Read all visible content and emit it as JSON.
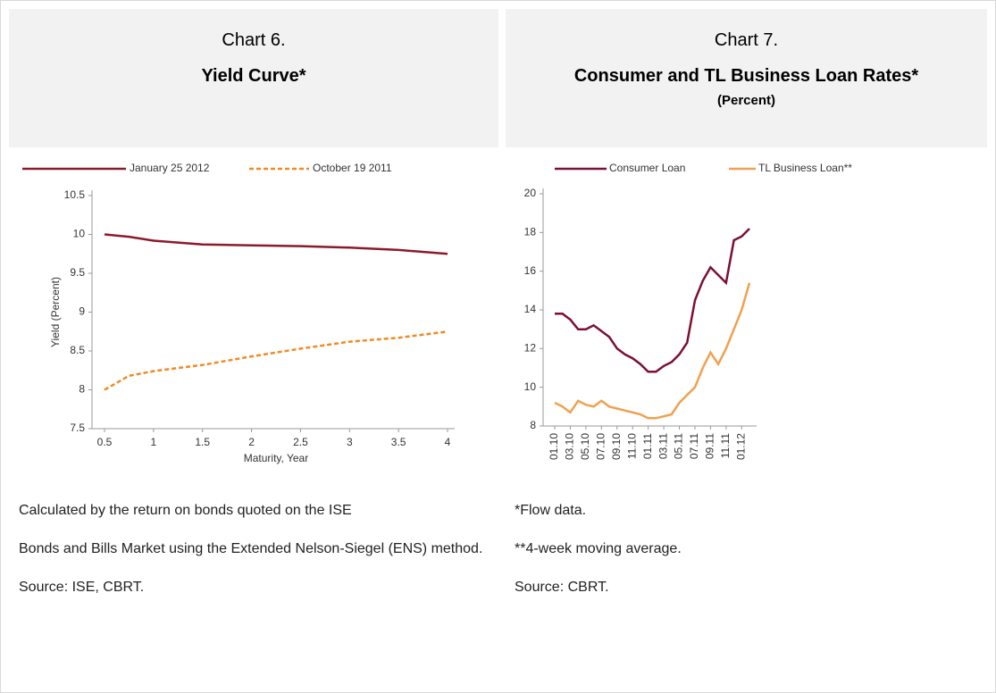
{
  "chart_data": [
    {
      "type": "line",
      "label": "Chart 6.",
      "title": "Yield Curve*",
      "x_label": "Maturity, Year",
      "y_label": "Yield (Percent)",
      "x": [
        0.5,
        0.75,
        1,
        1.5,
        2,
        2.5,
        3,
        3.5,
        4
      ],
      "xlim": [
        0.5,
        4
      ],
      "xticks": [
        0.5,
        1,
        1.5,
        2,
        2.5,
        3,
        3.5,
        4
      ],
      "ylim": [
        7.5,
        10.5
      ],
      "yticks": [
        7.5,
        8,
        8.5,
        9,
        9.5,
        10,
        10.5
      ],
      "series": [
        {
          "name": "January 25 2012",
          "color": "#8b1a2b",
          "style": "solid",
          "values": [
            10,
            9.97,
            9.92,
            9.87,
            9.86,
            9.85,
            9.83,
            9.8,
            9.75
          ]
        },
        {
          "name": "October 19 2011",
          "color": "#f08a24",
          "style": "dashed",
          "values": [
            8,
            8.18,
            8.24,
            8.32,
            8.43,
            8.53,
            8.62,
            8.67,
            8.75
          ]
        }
      ]
    },
    {
      "type": "line",
      "label": "Chart 7.",
      "title": "Consumer and TL Business Loan Rates*",
      "subtitle": "(Percent)",
      "categories": [
        "01.10",
        null,
        "03.10",
        null,
        "05.10",
        null,
        "07.10",
        null,
        "09.10",
        null,
        "11.10",
        null,
        "01.11",
        null,
        "03.11",
        null,
        "05.11",
        null,
        "07.11",
        null,
        "09.11",
        null,
        "11.11",
        null,
        "01.12",
        null
      ],
      "ylim": [
        8,
        20
      ],
      "yticks": [
        8,
        10,
        12,
        14,
        16,
        18,
        20
      ],
      "series": [
        {
          "name": "Consumer Loan",
          "color": "#7b1030",
          "style": "solid",
          "values": [
            13.8,
            13.8,
            13.5,
            13.0,
            13.0,
            13.2,
            12.9,
            12.6,
            12.0,
            11.7,
            11.5,
            11.2,
            10.8,
            10.8,
            11.1,
            11.3,
            11.7,
            12.3,
            14.5,
            15.5,
            16.2,
            15.8,
            15.4,
            17.6,
            17.8,
            18.2
          ]
        },
        {
          "name": "TL Business Loan**",
          "color": "#f0a050",
          "style": "solid",
          "values": [
            9.2,
            9.0,
            8.7,
            9.3,
            9.1,
            9.0,
            9.3,
            9.0,
            8.9,
            8.8,
            8.7,
            8.6,
            8.4,
            8.4,
            8.5,
            8.6,
            9.2,
            9.6,
            10.0,
            11.0,
            11.8,
            11.2,
            12.0,
            13.0,
            14.0,
            15.4
          ]
        }
      ]
    }
  ],
  "notes": {
    "left": [
      "Calculated by the return on bonds quoted on the ISE",
      "Bonds and Bills Market using the Extended Nelson-Siegel (ENS) method.",
      "Source: ISE, CBRT."
    ],
    "right": [
      "*Flow data.",
      "**4-week moving average.",
      "Source: CBRT."
    ]
  }
}
